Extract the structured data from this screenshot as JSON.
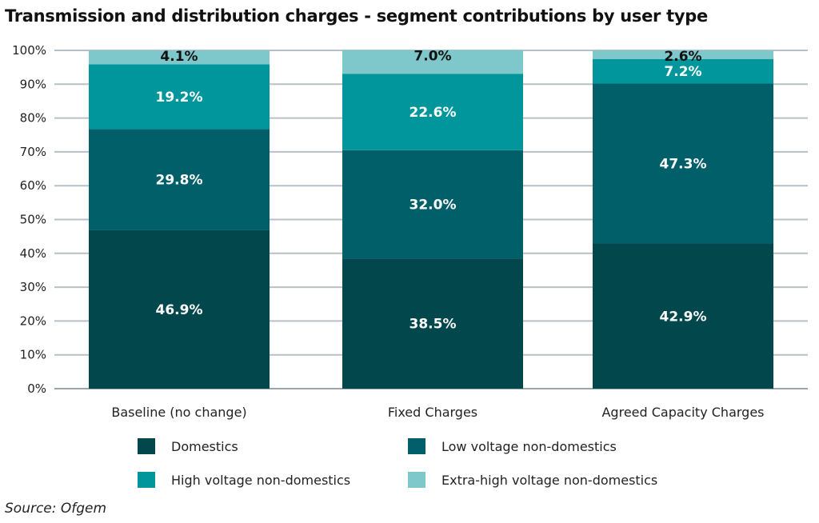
{
  "title": "Transmission and distribution charges - segment contributions by user type",
  "source": "Source: Ofgem",
  "chart_data": {
    "type": "bar",
    "stacked": true,
    "categories": [
      "Baseline (no change)",
      "Fixed Charges",
      "Agreed Capacity Charges"
    ],
    "series": [
      {
        "name": "Domestics",
        "values": [
          46.9,
          38.5,
          42.9
        ],
        "color": "#01474c",
        "labels": [
          "46.9%",
          "38.5%",
          "42.9%"
        ]
      },
      {
        "name": "Low voltage non-domestics",
        "values": [
          29.8,
          32.0,
          47.3
        ],
        "color": "#005f69",
        "labels": [
          "29.8%",
          "32.0%",
          "47.3%"
        ]
      },
      {
        "name": "High voltage non-domestics",
        "values": [
          19.2,
          22.6,
          7.2
        ],
        "color": "#00969c",
        "labels": [
          "19.2%",
          "22.6%",
          "7.2%"
        ]
      },
      {
        "name": "Extra-high voltage non-domestics",
        "values": [
          4.1,
          7.0,
          2.6
        ],
        "color": "#7ec8cb",
        "labels": [
          "4.1%",
          "7.0%",
          "2.6%"
        ]
      }
    ],
    "y_ticks": [
      "0%",
      "10%",
      "20%",
      "30%",
      "40%",
      "50%",
      "60%",
      "70%",
      "80%",
      "90%",
      "100%"
    ],
    "ylim": [
      0,
      100
    ],
    "grid": true,
    "legend": "bottom"
  }
}
